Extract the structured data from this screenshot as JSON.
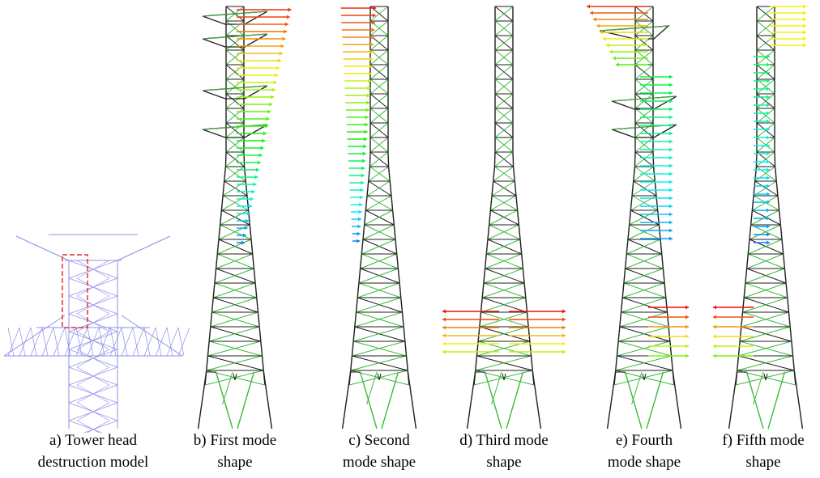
{
  "panels": [
    {
      "caption": [
        "a) Tower head",
        "destruction model"
      ]
    },
    {
      "caption": [
        "b) First mode",
        "shape"
      ]
    },
    {
      "caption": [
        "c) Second",
        "mode shape"
      ]
    },
    {
      "caption": [
        "d) Third mode",
        "shape"
      ]
    },
    {
      "caption": [
        "e) Fourth",
        "mode shape"
      ]
    },
    {
      "caption": [
        "f) Fifth mode",
        "shape"
      ]
    }
  ]
}
